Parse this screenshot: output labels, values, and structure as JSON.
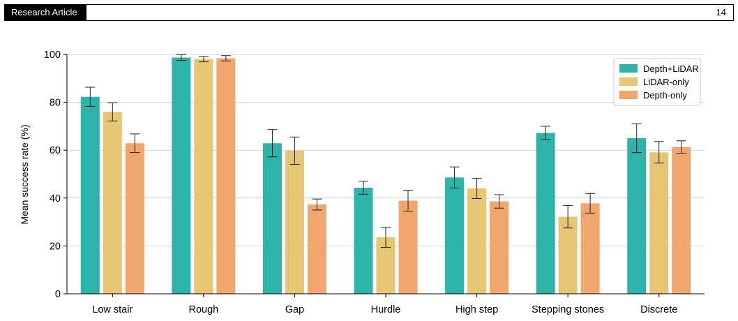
{
  "header": {
    "label": "Research Article",
    "page_number": "14"
  },
  "chart_data": {
    "type": "bar",
    "categories": [
      "Low stair",
      "Rough",
      "Gap",
      "Hurdle",
      "High step",
      "Stepping stones",
      "Discrete"
    ],
    "series": [
      {
        "name": "Depth+LiDAR",
        "color": "#2eb3aa",
        "values": [
          82.3,
          98.7,
          62.9,
          44.3,
          48.6,
          67.2,
          65.0
        ],
        "errors": [
          4.0,
          1.2,
          5.7,
          2.7,
          4.4,
          2.8,
          6.0
        ]
      },
      {
        "name": "LiDAR-only",
        "color": "#e6c573",
        "values": [
          76.0,
          98.0,
          59.8,
          23.6,
          44.0,
          32.2,
          59.1
        ],
        "errors": [
          3.8,
          1.1,
          5.7,
          4.2,
          4.2,
          4.7,
          4.5
        ]
      },
      {
        "name": "Depth-only",
        "color": "#f0a66c",
        "values": [
          62.9,
          98.4,
          37.3,
          38.9,
          38.6,
          37.8,
          61.3
        ],
        "errors": [
          3.9,
          1.1,
          2.3,
          4.4,
          2.8,
          4.1,
          2.6
        ]
      }
    ],
    "xlabel": "",
    "ylabel": "Mean success rate (%)",
    "ylim": [
      0,
      100
    ],
    "yticks": [
      0,
      20,
      40,
      60,
      80,
      100
    ],
    "grid": true,
    "legend_position": "top-right"
  }
}
